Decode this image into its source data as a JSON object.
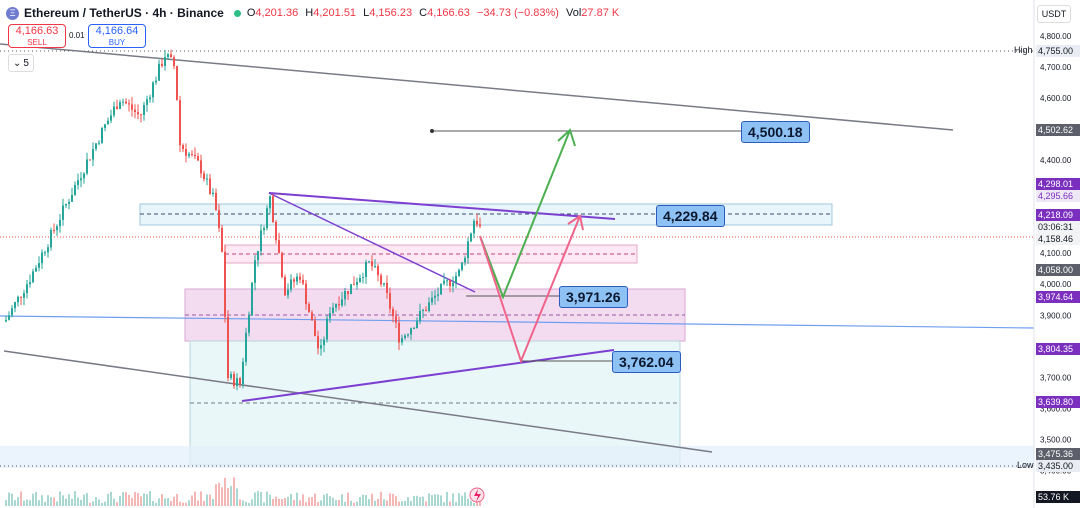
{
  "header": {
    "symbol": "Ethereum / TetherUS · 4h · Binance",
    "coin_letter": "Ξ",
    "open_label": "O",
    "open": "4,201.36",
    "high_label": "H",
    "high": "4,201.51",
    "low_label": "L",
    "low": "4,156.23",
    "close_label": "C",
    "close": "4,166.63",
    "change": "−34.73 (−0.83%)",
    "vol_label": "Vol",
    "volume": "27.87 K"
  },
  "trade": {
    "sell_price": "4,166.63",
    "sell_label": "SELL",
    "spread": "0.01",
    "buy_price": "4,166.64",
    "buy_label": "BUY"
  },
  "indicators_toggle": "5",
  "currency": "USDT",
  "price_axis": {
    "ticks": [
      "4,800.00",
      "4,700.00",
      "4,600.00",
      "4,400.00",
      "4,100.00",
      "4,000.00",
      "3,900.00",
      "3,700.00",
      "3,600.00",
      "3,500.00",
      "3,400.00"
    ]
  },
  "tags": {
    "high_label": "High",
    "high_value": "4,755.00",
    "low_label": "Low",
    "low_value": "3,435.00",
    "p_4502": "4,502.62",
    "p_4298": "4,298.01",
    "p_4295": "4,295.66",
    "p_4218": "4,218.09",
    "countdown": "03:06:31",
    "p_4158": "4,158.46",
    "p_4058": "4,058.00",
    "p_3974": "3,974.64",
    "p_3804": "3,804.35",
    "p_3639": "3,639.80",
    "p_3475": "3,475.36",
    "volume": "53.76 K"
  },
  "callouts": {
    "target_high": "4,500.18",
    "target_mid": "4,229.84",
    "target_support": "3,971.26",
    "target_low": "3,762.04"
  },
  "colors": {
    "up": "#26a69a",
    "down": "#ef5350",
    "purple_tag": "#7b2fbf",
    "grey_tag": "#5d606b",
    "blue_callout": "#8ec2f5"
  }
}
